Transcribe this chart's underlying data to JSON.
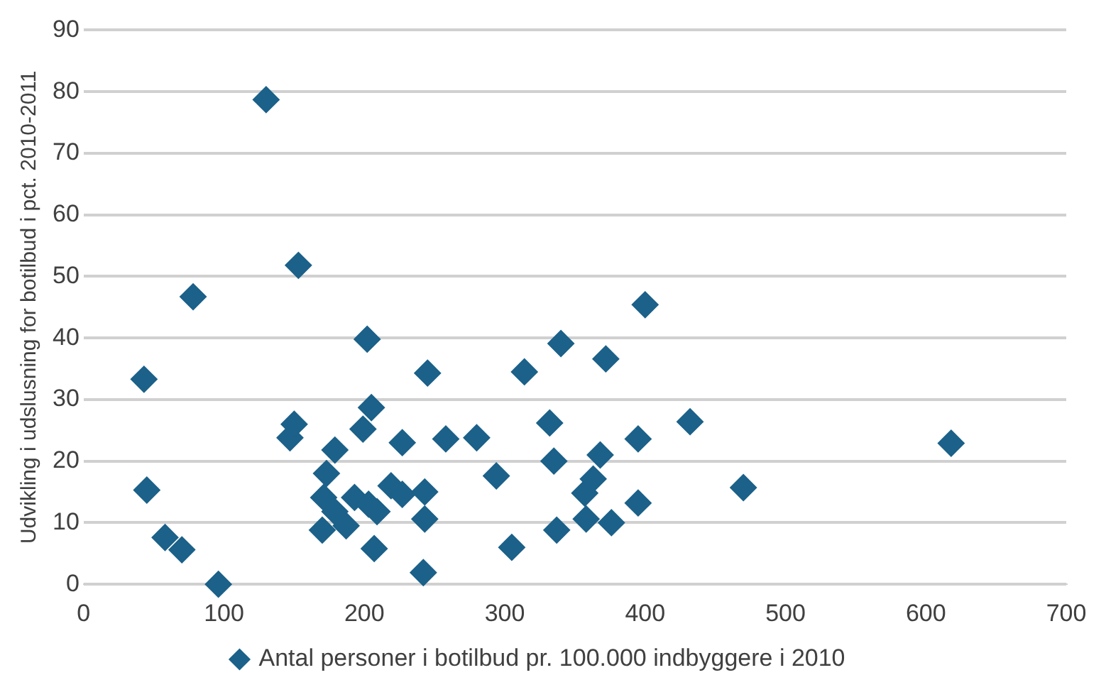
{
  "chart_data": {
    "type": "scatter",
    "ylabel": "Udvikling i udslusning for botilbud i pct. 2010-2011",
    "xlim": [
      0,
      700
    ],
    "xticks": [
      0,
      100,
      200,
      300,
      400,
      500,
      600,
      700
    ],
    "ylim": [
      0,
      90
    ],
    "yticks": [
      0,
      10,
      20,
      30,
      40,
      50,
      60,
      70,
      80,
      90
    ],
    "grid": "y",
    "legend": "bottom",
    "marker": "diamond",
    "series": [
      {
        "name": "Antal personer i botilbud pr. 100.000 indbyggere i 2010",
        "color": "#1b6189",
        "x": [
          43,
          45,
          58,
          70,
          78,
          96,
          130,
          147,
          150,
          153,
          170,
          171,
          173,
          179,
          179,
          187,
          193,
          199,
          202,
          203,
          205,
          207,
          209,
          219,
          227,
          227,
          242,
          243,
          243,
          245,
          258,
          280,
          294,
          305,
          314,
          332,
          335,
          337,
          340,
          357,
          358,
          363,
          368,
          372,
          376,
          395,
          395,
          400,
          432,
          470,
          618
        ],
        "values": [
          33.3,
          15.3,
          7.6,
          5.6,
          46.7,
          0,
          78.7,
          23.8,
          26,
          51.8,
          8.8,
          14.1,
          18,
          11.8,
          21.8,
          9.5,
          14.1,
          25.2,
          39.8,
          13,
          28.7,
          5.8,
          11.8,
          16,
          14.6,
          23,
          1.9,
          10.6,
          15,
          34.3,
          23.6,
          23.8,
          17.6,
          6,
          34.5,
          26.2,
          20,
          8.8,
          39.1,
          14.8,
          10.6,
          17.1,
          21,
          36.6,
          10,
          13.2,
          23.6,
          45.4,
          26.4,
          15.7,
          22.9
        ]
      }
    ]
  }
}
